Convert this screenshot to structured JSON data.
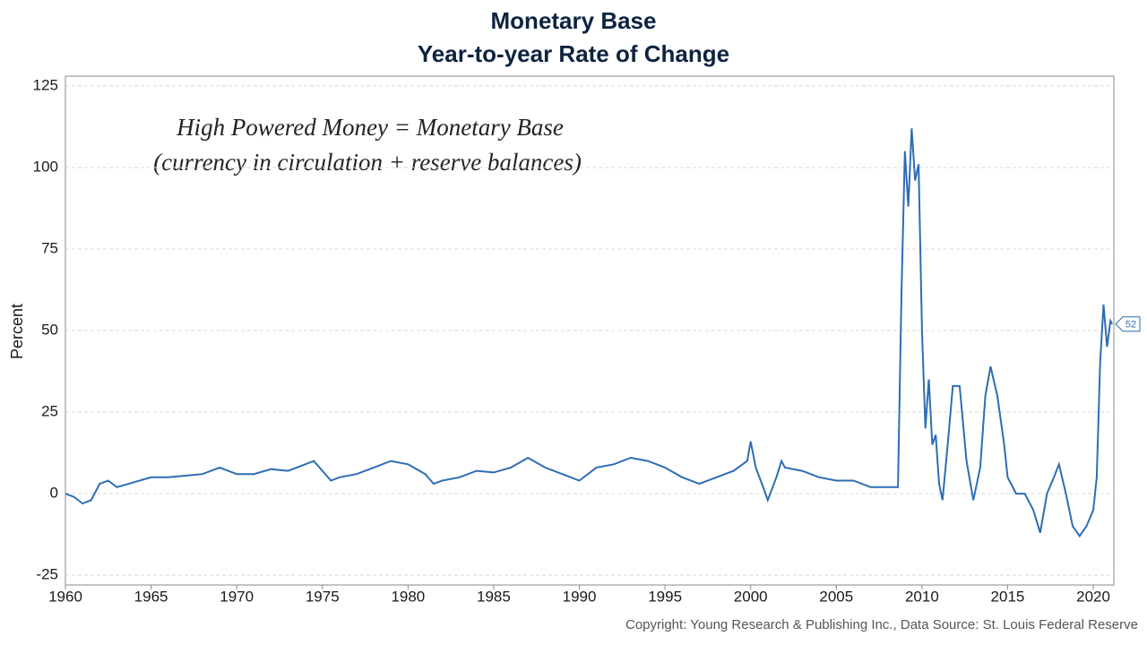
{
  "chart_data": {
    "type": "line",
    "title": "Monetary Base",
    "subtitle": "Year-to-year Rate of Change",
    "y_label": "Percent",
    "annotation": [
      "High Powered Money = Monetary Base",
      "(currency in circulation + reserve balances)"
    ],
    "footer": "Copyright: Young Research & Publishing Inc., Data Source: St. Louis Federal Reserve",
    "color": "#2e6db4",
    "grid": true,
    "x": [
      1960,
      1960.5,
      1961,
      1961.5,
      1962,
      1962.5,
      1963,
      1964,
      1965,
      1966,
      1967,
      1968,
      1969,
      1970,
      1971,
      1972,
      1973,
      1974,
      1974.5,
      1975,
      1975.5,
      1976,
      1977,
      1978,
      1979,
      1980,
      1981,
      1981.5,
      1982,
      1983,
      1984,
      1985,
      1986,
      1987,
      1988,
      1989,
      1990,
      1990.5,
      1991,
      1992,
      1993,
      1994,
      1995,
      1996,
      1997,
      1998,
      1999,
      1999.8,
      2000,
      2000.3,
      2000.8,
      2001,
      2001.5,
      2001.8,
      2002,
      2003,
      2004,
      2005,
      2006,
      2007,
      2008,
      2008.6,
      2008.8,
      2009,
      2009.2,
      2009.4,
      2009.6,
      2009.8,
      2010,
      2010.2,
      2010.4,
      2010.6,
      2010.8,
      2011,
      2011.2,
      2011.5,
      2011.8,
      2012.2,
      2012.6,
      2013,
      2013.4,
      2013.7,
      2014,
      2014.4,
      2014.8,
      2015,
      2015.5,
      2016,
      2016.5,
      2016.9,
      2017.3,
      2017.7,
      2018,
      2018.4,
      2018.8,
      2019.2,
      2019.6,
      2020,
      2020.2,
      2020.4,
      2020.6,
      2020.8,
      2021,
      2021.1
    ],
    "values": [
      0,
      -1,
      -3,
      -2,
      3,
      4,
      2,
      3.5,
      5,
      5,
      5.5,
      6,
      8,
      6,
      6,
      7.5,
      7,
      9,
      10,
      7,
      4,
      5,
      6,
      8,
      10,
      9,
      6,
      3,
      4,
      5,
      7,
      6.5,
      8,
      11,
      8,
      6,
      4,
      6,
      8,
      9,
      11,
      10,
      8,
      5,
      3,
      5,
      7,
      10,
      16,
      8,
      1,
      -2,
      5,
      10,
      8,
      7,
      5,
      4,
      4,
      2,
      2,
      2,
      60,
      105,
      88,
      112,
      96,
      101,
      50,
      20,
      35,
      15,
      18,
      3,
      -2,
      15,
      33,
      33,
      10,
      -2,
      8,
      30,
      39,
      30,
      15,
      5,
      0,
      0,
      -5,
      -12,
      0,
      5,
      9,
      0,
      -10,
      -13,
      -10,
      -5,
      5,
      40,
      58,
      45,
      53,
      52
    ],
    "xlim": [
      1960,
      2021.2
    ],
    "ylim": [
      -28,
      128
    ],
    "xticks": [
      1960,
      1965,
      1970,
      1975,
      1980,
      1985,
      1990,
      1995,
      2000,
      2005,
      2010,
      2015,
      2020
    ],
    "yticks": [
      -25,
      0,
      25,
      50,
      75,
      100,
      125
    ]
  }
}
